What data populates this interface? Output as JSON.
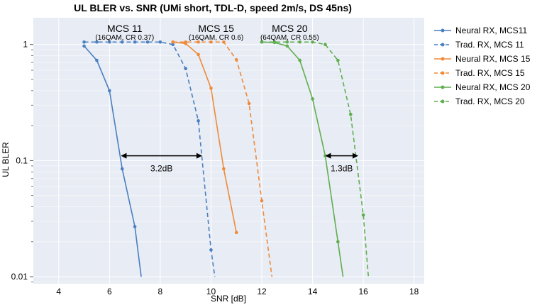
{
  "chart_data": {
    "type": "line",
    "title": "UL BLER vs. SNR (UMi short, TDL-D, speed 2m/s, DS 45ns)",
    "xlabel": "SNR [dB]",
    "ylabel": "UL BLER",
    "xlim": [
      3,
      18.4
    ],
    "ylim": [
      0.0087,
      1.7
    ],
    "yscale": "log",
    "grid": true,
    "legend_position": "outside-right",
    "xticks": [
      4,
      6,
      8,
      10,
      12,
      14,
      16,
      18
    ],
    "xtick_labels": [
      "4",
      "6",
      "8",
      "10",
      "12",
      "14",
      "16",
      "18"
    ],
    "yticks": [
      1,
      0.1,
      0.01
    ],
    "ytick_labels": [
      "1",
      "0.1",
      "0.01"
    ],
    "series": [
      {
        "name": "Neural RX, MCS11",
        "color": "#4a7fc1",
        "dashed": false,
        "x": [
          5,
          5.5,
          6,
          6.5,
          7,
          7.25
        ],
        "y": [
          0.97,
          0.73,
          0.4,
          0.085,
          0.027,
          0.01
        ]
      },
      {
        "name": "Trad. RX, MCS 11",
        "color": "#4a7fc1",
        "dashed": true,
        "x": [
          5,
          5.5,
          6,
          6.5,
          7,
          7.5,
          8,
          8.5,
          9,
          9.5,
          10,
          10.15
        ],
        "y": [
          1.05,
          1.05,
          1.05,
          1.05,
          1.05,
          1.05,
          1.05,
          1.0,
          0.62,
          0.22,
          0.017,
          0.01
        ]
      },
      {
        "name": "Neural RX, MCS 15",
        "color": "#ef8a3a",
        "dashed": false,
        "x": [
          8.5,
          9,
          9.5,
          10,
          10.5,
          11
        ],
        "y": [
          1.05,
          1.02,
          0.82,
          0.42,
          0.085,
          0.024
        ]
      },
      {
        "name": "Trad. RX, MCS 15",
        "color": "#ef8a3a",
        "dashed": true,
        "x": [
          8.5,
          9,
          9.5,
          10,
          10.5,
          11,
          11.5,
          12,
          12.4
        ],
        "y": [
          1.05,
          1.05,
          1.05,
          1.05,
          1.05,
          0.74,
          0.31,
          0.045,
          0.01
        ]
      },
      {
        "name": "Neural RX, MCS 20",
        "color": "#5fae4e",
        "dashed": false,
        "x": [
          12,
          12.5,
          13,
          13.5,
          14,
          14.5,
          15,
          15.2
        ],
        "y": [
          1.05,
          1.04,
          0.97,
          0.73,
          0.34,
          0.11,
          0.02,
          0.01
        ]
      },
      {
        "name": "Trad. RX, MCS 20",
        "color": "#5fae4e",
        "dashed": true,
        "x": [
          12,
          12.5,
          13,
          13.5,
          14,
          14.5,
          15,
          15.5,
          16,
          16.2
        ],
        "y": [
          1.05,
          1.05,
          1.05,
          1.05,
          1.05,
          1.0,
          0.73,
          0.25,
          0.034,
          0.01
        ]
      }
    ],
    "annotations": [
      {
        "title": "MCS 11",
        "subtitle": "(16QAM, CR 0.37)",
        "x": 6.6
      },
      {
        "title": "MCS 15",
        "subtitle": "(16QAM, CR 0.6)",
        "x": 10.2
      },
      {
        "title": "MCS 20",
        "subtitle": "(64QAM, CR 0.55)",
        "x": 13.1
      }
    ],
    "arrows": [
      {
        "label": "3.2dB",
        "x1": 6.45,
        "x2": 9.65,
        "y": 0.11
      },
      {
        "label": "1.3dB",
        "x1": 14.5,
        "x2": 15.8,
        "y": 0.11
      }
    ]
  }
}
